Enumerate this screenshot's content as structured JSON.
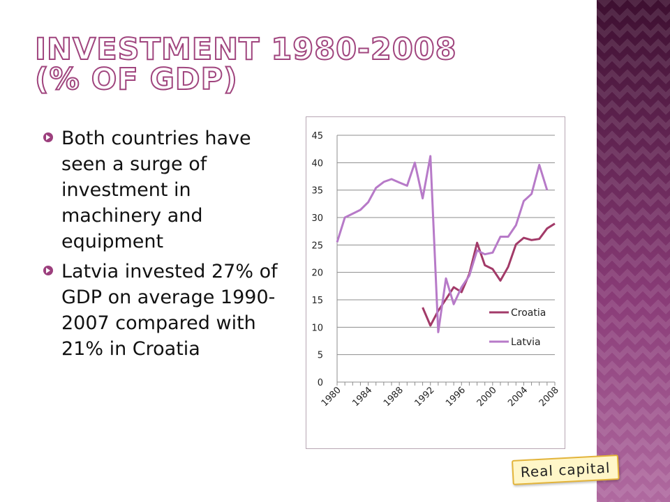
{
  "slide": {
    "title_line1": "Investment 1980-2008",
    "title_line2": "(% of GDP)",
    "bullets": [
      "Both countries have seen a surge of investment in machinery and equipment",
      "Latvia invested 27% of GDP on average 1990-2007 compared with 21% in Croatia"
    ],
    "stamp_label": "Real capital"
  },
  "colors": {
    "croatia": "#a23a68",
    "latvia": "#b77ac8",
    "accent": "#9c3f7d"
  },
  "chart_data": {
    "type": "line",
    "title": "",
    "xlabel": "",
    "ylabel": "",
    "xlim": [
      1980,
      2008
    ],
    "ylim": [
      0,
      45
    ],
    "y_ticks": [
      "0",
      "5",
      "10",
      "15",
      "20",
      "25",
      "30",
      "35",
      "40",
      "45"
    ],
    "x_ticks": [
      "1980",
      "1984",
      "1988",
      "1992",
      "1996",
      "2000",
      "2004",
      "2008"
    ],
    "grid": "horizontal",
    "legend_position": "right",
    "series": [
      {
        "name": "Croatia",
        "x": [
          1991,
          1992,
          1993,
          1994,
          1995,
          1996,
          1997,
          1998,
          1999,
          2000,
          2001,
          2002,
          2003,
          2004,
          2005,
          2006,
          2007,
          2008
        ],
        "values": [
          13.6,
          10.3,
          13.0,
          15.1,
          17.3,
          16.4,
          19.7,
          25.4,
          21.3,
          20.6,
          18.5,
          21.0,
          25.1,
          26.3,
          25.9,
          26.1,
          28.0,
          28.9
        ]
      },
      {
        "name": "Latvia",
        "x": [
          1980,
          1981,
          1982,
          1983,
          1984,
          1985,
          1986,
          1987,
          1988,
          1989,
          1990,
          1991,
          1992,
          1993,
          1994,
          1995,
          1996,
          1997,
          1998,
          1999,
          2000,
          2001,
          2002,
          2003,
          2004,
          2005,
          2006,
          2007
        ],
        "values": [
          25.5,
          30.0,
          30.7,
          31.4,
          32.8,
          35.4,
          36.5,
          37.0,
          36.4,
          35.8,
          40.0,
          33.5,
          41.2,
          9.1,
          18.9,
          14.2,
          17.3,
          19.4,
          24.0,
          23.3,
          23.6,
          26.5,
          26.5,
          28.6,
          33.0,
          34.3,
          39.6,
          35.0
        ]
      }
    ]
  }
}
